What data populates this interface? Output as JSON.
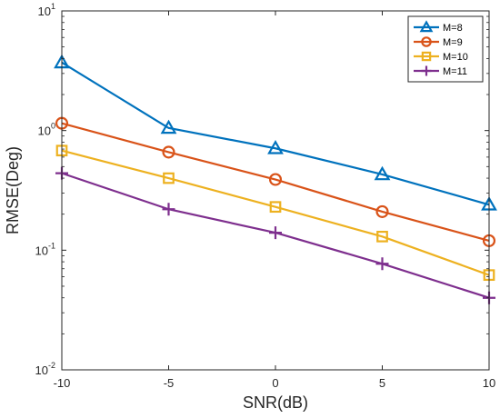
{
  "chart_data": {
    "type": "line",
    "xlabel": "SNR(dB)",
    "ylabel": "RMSE(Deg)",
    "x": [
      -10,
      -5,
      0,
      5,
      10
    ],
    "xlim": [
      -10,
      10
    ],
    "ylim": [
      0.01,
      10
    ],
    "yscale": "log",
    "xticks": [
      "-10",
      "-5",
      "0",
      "5",
      "10"
    ],
    "yticks": [
      {
        "base": "10",
        "exp": "-2"
      },
      {
        "base": "10",
        "exp": "-1"
      },
      {
        "base": "10",
        "exp": "0"
      },
      {
        "base": "10",
        "exp": "1"
      }
    ],
    "grid": false,
    "legend_position": "top-right",
    "series": [
      {
        "name": "M=8",
        "values": [
          3.7,
          1.05,
          0.71,
          0.43,
          0.24
        ],
        "color": "#0072BD",
        "marker": "triangle"
      },
      {
        "name": "M=9",
        "values": [
          1.15,
          0.66,
          0.39,
          0.21,
          0.12
        ],
        "color": "#D95319",
        "marker": "circle"
      },
      {
        "name": "M=10",
        "values": [
          0.68,
          0.4,
          0.23,
          0.13,
          0.062
        ],
        "color": "#EDB120",
        "marker": "square"
      },
      {
        "name": "M=11",
        "values": [
          0.44,
          0.22,
          0.14,
          0.077,
          0.04
        ],
        "color": "#7E2F8E",
        "marker": "plus"
      }
    ]
  }
}
